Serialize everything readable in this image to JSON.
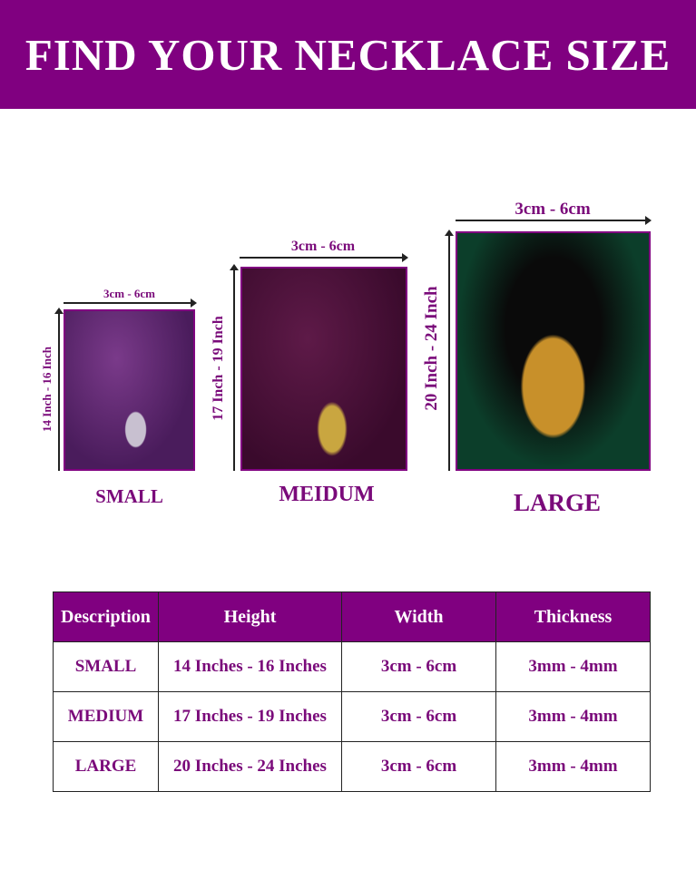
{
  "banner": {
    "title": "FIND YOUR NECKLACE SIZE"
  },
  "colors": {
    "brand": "#800080",
    "text": "#7a0a7a"
  },
  "sizes": [
    {
      "name": "SMALL",
      "width_label": "3cm - 6cm",
      "height_label": "14 Inch - 16 Inch"
    },
    {
      "name": "MEIDUM",
      "width_label": "3cm - 6cm",
      "height_label": "17 Inch - 19 Inch"
    },
    {
      "name": "LARGE",
      "width_label": "3cm - 6cm",
      "height_label": "20 Inch - 24 Inch"
    }
  ],
  "table": {
    "headers": [
      "Description",
      "Height",
      "Width",
      "Thickness"
    ],
    "rows": [
      [
        "SMALL",
        "14 Inches - 16 Inches",
        "3cm - 6cm",
        "3mm - 4mm"
      ],
      [
        "MEDIUM",
        "17 Inches - 19 Inches",
        "3cm - 6cm",
        "3mm - 4mm"
      ],
      [
        "LARGE",
        "20 Inches - 24 Inches",
        "3cm - 6cm",
        "3mm - 4mm"
      ]
    ]
  }
}
